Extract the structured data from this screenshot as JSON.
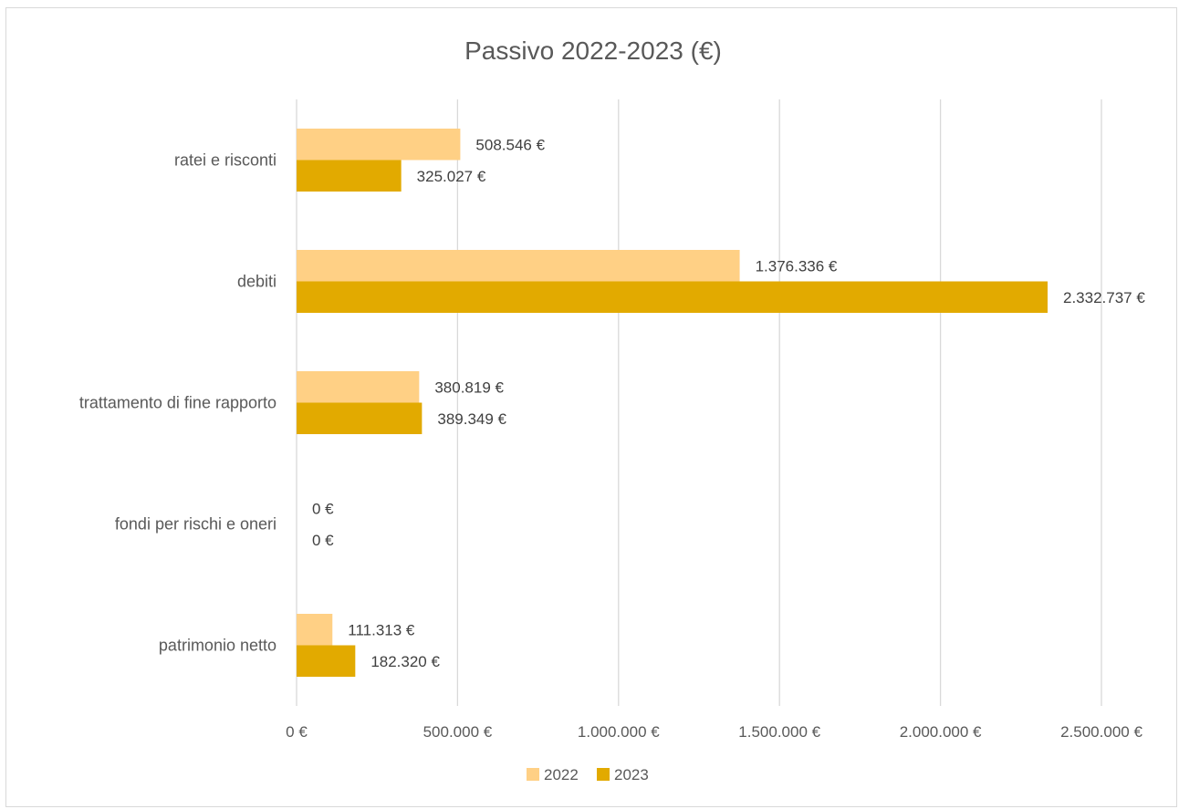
{
  "chart_data": {
    "type": "bar",
    "orientation": "horizontal",
    "title": "Passivo 2022-2023 (€)",
    "categories": [
      "ratei e risconti",
      "debiti",
      "trattamento di fine rapporto",
      "fondi per rischi e oneri",
      "patrimonio netto"
    ],
    "series": [
      {
        "name": "2022",
        "color": "#ffd085",
        "values": [
          508546,
          1376336,
          380819,
          0,
          111313
        ],
        "labels": [
          "508.546 €",
          "1.376.336 €",
          "380.819 €",
          "0 €",
          "111.313 €"
        ]
      },
      {
        "name": "2023",
        "color": "#e2aa00",
        "values": [
          325027,
          2332737,
          389349,
          0,
          182320
        ],
        "labels": [
          "325.027 €",
          "2.332.737 €",
          "389.349 €",
          "0 €",
          "182.320 €"
        ]
      }
    ],
    "xlim": [
      0,
      2500000
    ],
    "xticks": [
      0,
      500000,
      1000000,
      1500000,
      2000000,
      2500000
    ],
    "xtick_labels": [
      "0 €",
      "500.000 €",
      "1.000.000 €",
      "1.500.000 €",
      "2.000.000 €",
      "2.500.000 €"
    ],
    "grid": "vertical",
    "legend": "bottom",
    "xlabel": "",
    "ylabel": ""
  }
}
